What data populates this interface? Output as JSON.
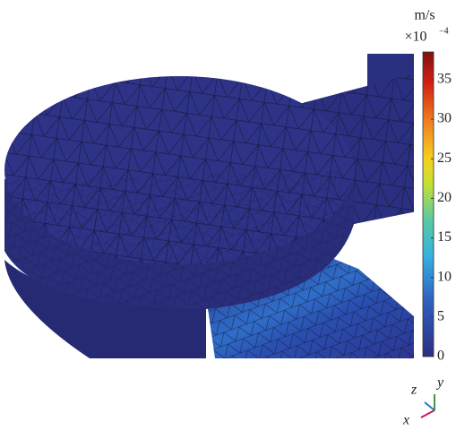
{
  "colorbar": {
    "unit": "m/s",
    "multiplier": "×10",
    "exponent": "−4",
    "lim": [
      0,
      38.5
    ],
    "ticks": [
      0,
      5,
      10,
      15,
      20,
      25,
      30,
      35
    ]
  },
  "axes": {
    "z": "z",
    "y": "y",
    "x": "x"
  }
}
